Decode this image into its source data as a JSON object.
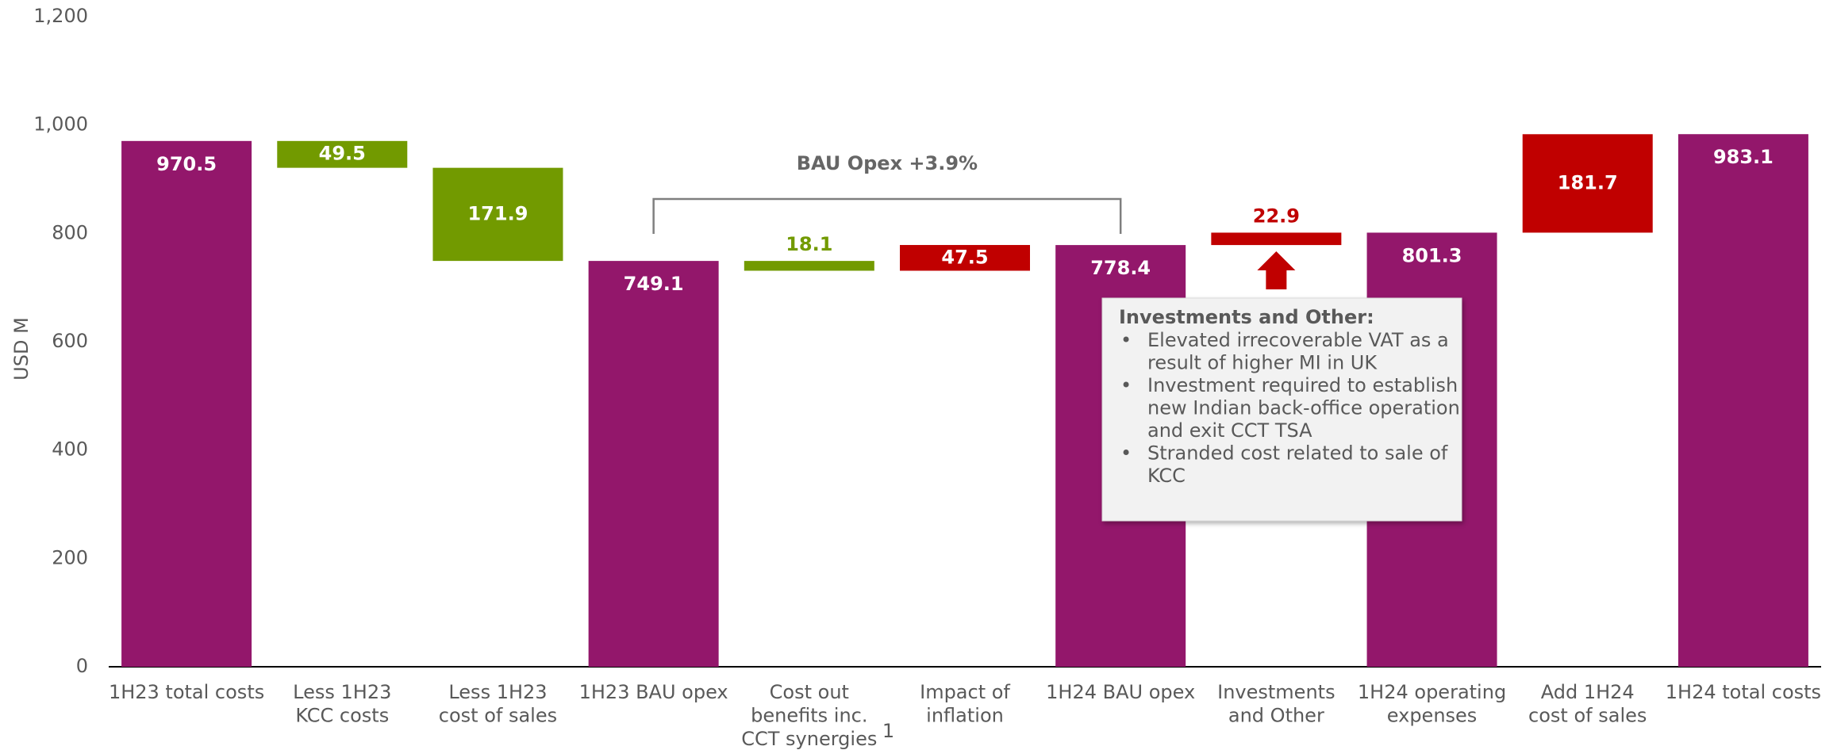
{
  "chart_data": {
    "type": "waterfall",
    "y_label": "USD M",
    "categories": [
      [
        "1H23 total costs"
      ],
      [
        "Less 1H23",
        "KCC costs"
      ],
      [
        "Less 1H23",
        "cost of sales"
      ],
      [
        "1H23 BAU opex"
      ],
      [
        "Cost out",
        "benefits inc.",
        "CCT synergies"
      ],
      [
        "Impact of",
        "inflation"
      ],
      [
        "1H24 BAU opex"
      ],
      [
        "Investments",
        "and Other"
      ],
      [
        "1H24 operating",
        "expenses"
      ],
      [
        "Add 1H24",
        "cost of sales"
      ],
      [
        "1H24 total costs"
      ]
    ],
    "values": [
      970.5,
      49.5,
      171.9,
      749.1,
      18.1,
      47.5,
      778.4,
      22.9,
      801.3,
      181.7,
      983.1
    ],
    "measures": [
      "total",
      "decrease",
      "decrease",
      "total",
      "decrease",
      "increase",
      "total",
      "increase",
      "total",
      "increase",
      "total"
    ],
    "colors": {
      "total": "#93176b",
      "decrease": "#729a00",
      "increase": "#c00000"
    },
    "footnote": "1",
    "footnote_category": 4,
    "ylim": [
      0,
      1200
    ],
    "yticks": [
      0,
      200,
      400,
      600,
      800,
      {
        "value": 1000,
        "label": "1,000"
      },
      {
        "value": 1200,
        "label": "1,200"
      }
    ],
    "bracket": {
      "text": "BAU Opex +3.9%",
      "from": 3,
      "to": 6
    },
    "callout": {
      "title": "Investments and Other:",
      "category": 7,
      "bullets": [
        [
          "Elevated irrecoverable VAT as a",
          "result of higher MI in UK"
        ],
        [
          "Investment required to establish",
          "new Indian back-office operation",
          "and exit CCT TSA"
        ],
        [
          "Stranded cost related to sale of",
          "KCC"
        ]
      ]
    }
  }
}
